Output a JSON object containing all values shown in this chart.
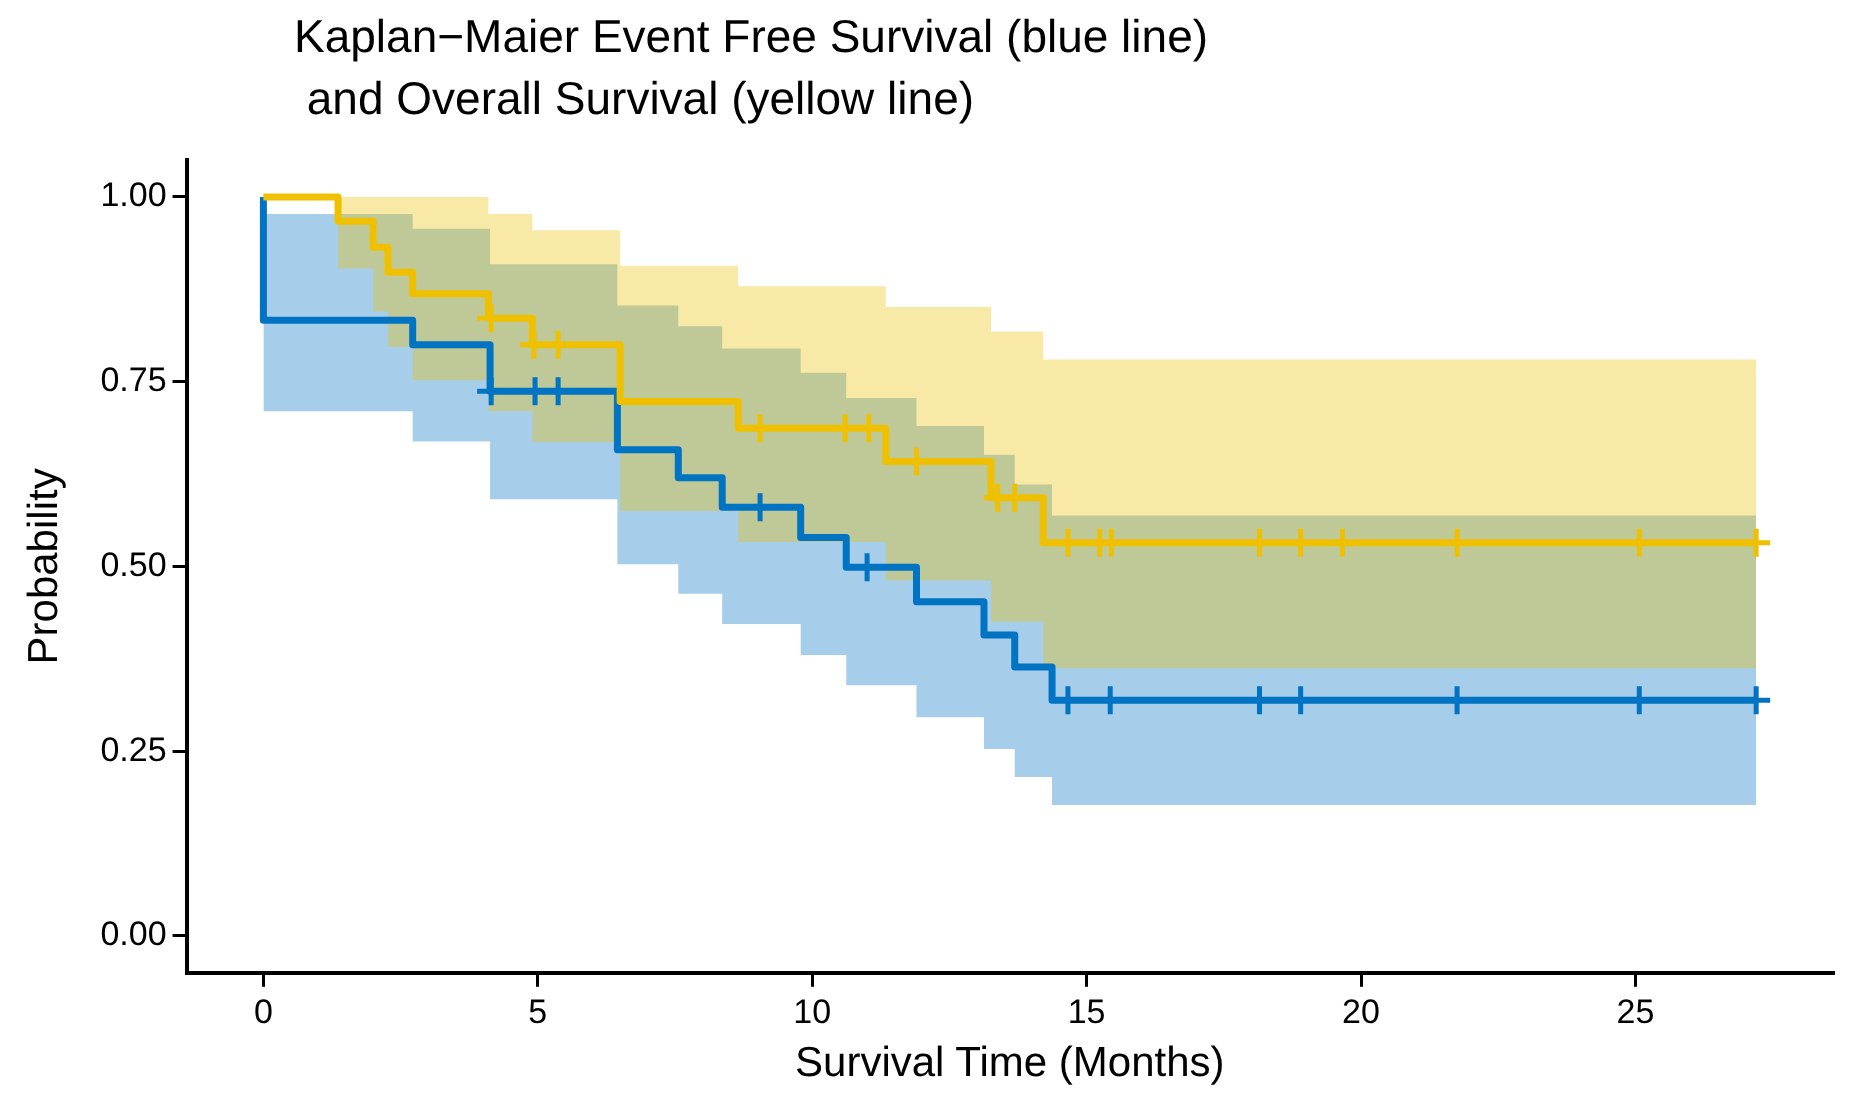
{
  "chart_data": {
    "type": "step",
    "title": "Kaplan−Maier Event Free Survival (blue line)\n and Overall Survival (yellow line)",
    "xlabel": "Survival Time (Months)",
    "ylabel": "Probability",
    "xlim": [
      -1.4,
      28.6
    ],
    "xticks": [
      0,
      5,
      10,
      15,
      20,
      25
    ],
    "ylim": [
      -0.05,
      1.05
    ],
    "yticks": [
      {
        "value": 0,
        "label": "0.00"
      },
      {
        "value": 0.25,
        "label": "0.25"
      },
      {
        "value": 0.5,
        "label": "0.50"
      },
      {
        "value": 0.75,
        "label": "0.75"
      },
      {
        "value": 1,
        "label": "1.00"
      }
    ],
    "grid": false,
    "legend": false,
    "series": [
      {
        "type": "step",
        "color": "#efc000",
        "x": [
          0,
          1.36,
          2.0,
          2.27,
          2.72,
          4.1,
          4.9,
          6.5,
          8.65,
          11.34,
          13.26,
          14.21,
          27.2
        ],
        "values": [
          1,
          0.967,
          0.932,
          0.898,
          0.869,
          0.836,
          0.8,
          0.723,
          0.687,
          0.642,
          0.593,
          0.532,
          0.532
        ],
        "lower": [
          1,
          0.903,
          0.845,
          0.797,
          0.752,
          0.71,
          0.668,
          0.575,
          0.533,
          0.481,
          0.425,
          0.362,
          0.362
        ],
        "upper": [
          1,
          1,
          1,
          1,
          1,
          0.977,
          0.955,
          0.907,
          0.879,
          0.851,
          0.818,
          0.78,
          0.78
        ]
      },
      {
        "type": "step",
        "color": "#0073c2",
        "x": [
          0,
          0,
          2.72,
          4.13,
          6.45,
          7.56,
          8.36,
          9.79,
          10.62,
          11.9,
          13.13,
          13.69,
          14.37,
          27.2
        ],
        "values": [
          1,
          0.833,
          0.8,
          0.737,
          0.658,
          0.62,
          0.58,
          0.539,
          0.499,
          0.452,
          0.407,
          0.364,
          0.319,
          0.319
        ],
        "lower": [
          null,
          0.71,
          0.669,
          0.591,
          0.503,
          0.463,
          0.422,
          0.38,
          0.339,
          0.296,
          0.253,
          0.215,
          0.177,
          0.177
        ],
        "upper": [
          null,
          0.977,
          0.957,
          0.909,
          0.853,
          0.825,
          0.795,
          0.762,
          0.728,
          0.69,
          0.651,
          0.611,
          0.569,
          0.569
        ]
      },
      {
        "type": "scatter",
        "marker": "cross",
        "color": "#efc000",
        "x": [
          4.15,
          4.93,
          5.37,
          9.05,
          10.6,
          11.03,
          11.9,
          13.38,
          13.69,
          14.66,
          15.24,
          15.45,
          18.15,
          18.9,
          19.66,
          21.75,
          25.07,
          27.2
        ],
        "values": [
          0.836,
          0.8,
          0.8,
          0.687,
          0.687,
          0.687,
          0.642,
          0.593,
          0.593,
          0.532,
          0.532,
          0.532,
          0.532,
          0.532,
          0.532,
          0.532,
          0.532,
          0.532
        ]
      },
      {
        "type": "scatter",
        "marker": "cross",
        "color": "#0073c2",
        "x": [
          4.15,
          4.95,
          5.37,
          9.05,
          11.0,
          14.66,
          15.43,
          18.15,
          18.9,
          21.75,
          25.07,
          27.2
        ],
        "values": [
          0.737,
          0.737,
          0.737,
          0.58,
          0.499,
          0.319,
          0.319,
          0.319,
          0.319,
          0.319,
          0.319,
          0.319
        ]
      }
    ]
  }
}
